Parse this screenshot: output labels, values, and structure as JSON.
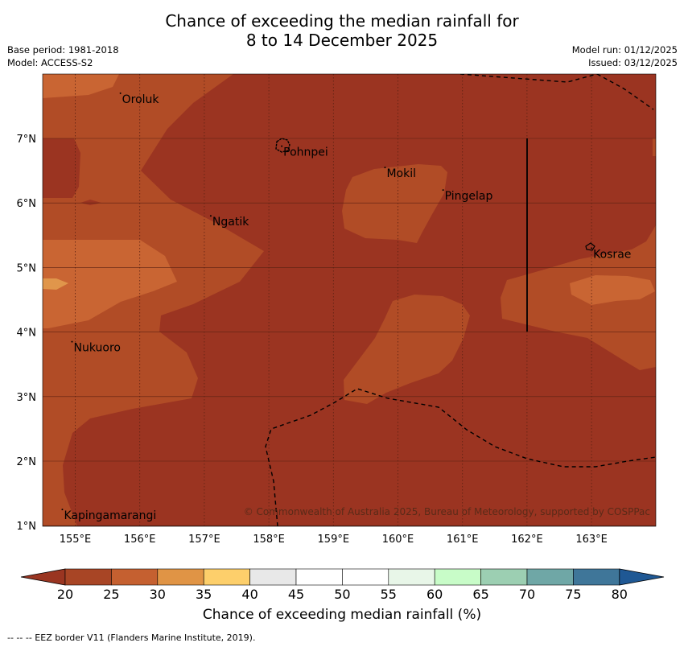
{
  "title": {
    "line1": "Chance of exceeding the median rainfall for",
    "line2": "8 to 14 December 2025"
  },
  "meta_left": {
    "base_period": "Base period: 1981-2018",
    "model": "Model: ACCESS-S2"
  },
  "meta_right": {
    "model_run": "Model run: 01/12/2025",
    "issued": "Issued: 03/12/2025"
  },
  "map": {
    "lon_labels": [
      "155°E",
      "156°E",
      "157°E",
      "158°E",
      "159°E",
      "160°E",
      "161°E",
      "162°E",
      "163°E"
    ],
    "lat_labels": [
      "7°N",
      "6°N",
      "5°N",
      "4°N",
      "3°N",
      "2°N",
      "1°N"
    ],
    "places": [
      {
        "name": "Oroluk",
        "lon": 155.7,
        "lat": 7.7
      },
      {
        "name": "Pohnpei",
        "lon": 158.2,
        "lat": 6.88
      },
      {
        "name": "Mokil",
        "lon": 159.8,
        "lat": 6.55
      },
      {
        "name": "Pingelap",
        "lon": 160.7,
        "lat": 6.2
      },
      {
        "name": "Ngatik",
        "lon": 157.1,
        "lat": 5.8
      },
      {
        "name": "Kosrae",
        "lon": 163.0,
        "lat": 5.3
      },
      {
        "name": "Nukuoro",
        "lon": 154.95,
        "lat": 3.85
      },
      {
        "name": "Kapingamarangi",
        "lon": 154.8,
        "lat": 1.25
      }
    ],
    "copyright": "© Commonwealth of Australia 2025, Bureau of Meteorology, supported by COSPPac",
    "colors": {
      "bin_20_25": "#9b3421",
      "bin_25_30": "#b14c26",
      "bin_30_35": "#c96533"
    }
  },
  "colorbar": {
    "ticks": [
      "20",
      "25",
      "30",
      "35",
      "40",
      "45",
      "50",
      "55",
      "60",
      "65",
      "70",
      "75",
      "80"
    ],
    "colors": [
      "#a84525",
      "#c56030",
      "#e09445",
      "#fdcf6b",
      "#e8e8e8",
      "#ffffff",
      "#ffffff",
      "#e8f6e8",
      "#c8fcc8",
      "#9ccfb2",
      "#6fa7a6",
      "#3f7699"
    ],
    "under_color": "#9a3521",
    "over_color": "#1f5894",
    "label": "Chance of exceeding median rainfall (%)"
  },
  "footer": "--  --  -- EEZ border V11 (Flanders Marine Institute, 2019)."
}
